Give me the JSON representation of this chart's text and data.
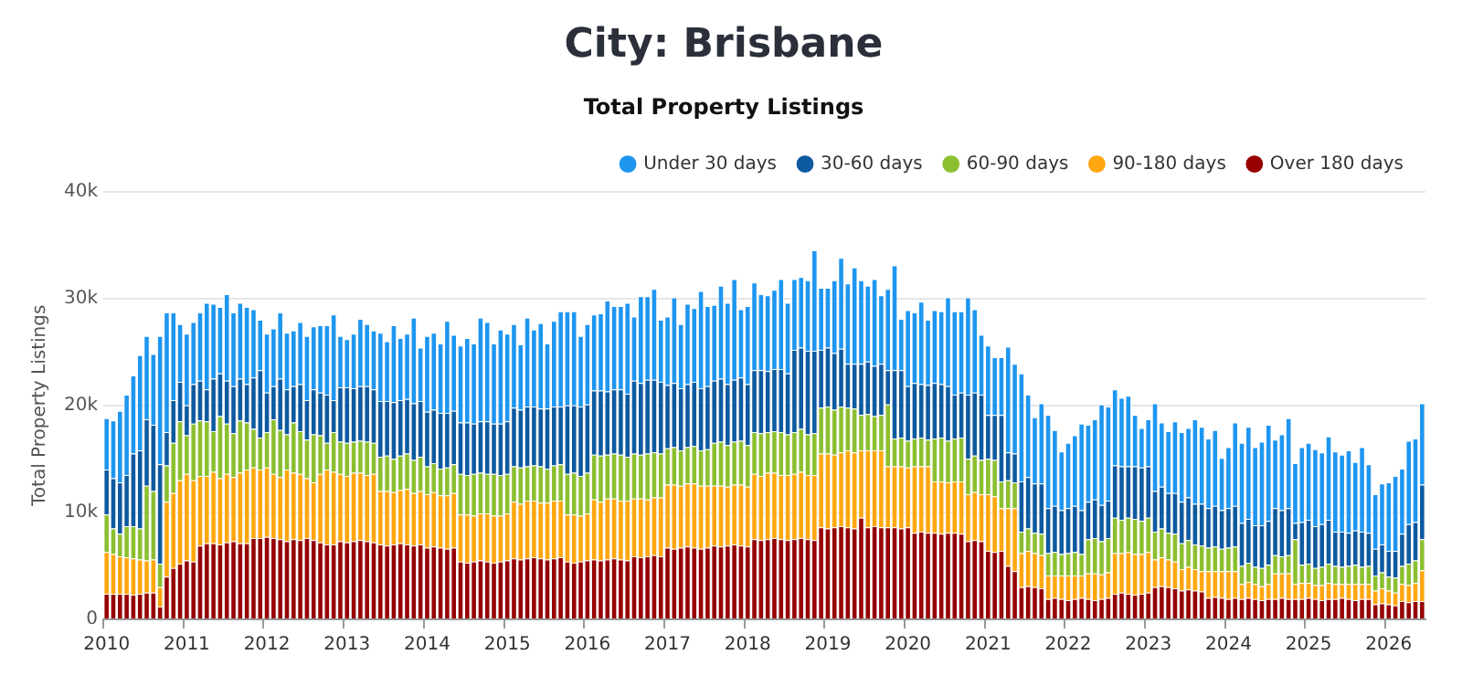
{
  "chart_data": {
    "type": "bar",
    "title": "City: Brisbane",
    "subtitle": "Total Property Listings",
    "ylabel": "Total Property Listings",
    "stacked": true,
    "ylim": [
      0,
      40000
    ],
    "yticks": [
      {
        "value": 0,
        "label": "0"
      },
      {
        "value": 10000,
        "label": "10k"
      },
      {
        "value": 20000,
        "label": "20k"
      },
      {
        "value": 30000,
        "label": "30k"
      },
      {
        "value": 40000,
        "label": "40k"
      }
    ],
    "grid": "y",
    "legend": "top right",
    "categories": [
      "2010",
      null,
      null,
      null,
      null,
      null,
      null,
      null,
      null,
      null,
      null,
      null,
      "2011",
      null,
      null,
      null,
      null,
      null,
      null,
      null,
      null,
      null,
      null,
      null,
      "2012",
      null,
      null,
      null,
      null,
      null,
      null,
      null,
      null,
      null,
      null,
      null,
      "2013",
      null,
      null,
      null,
      null,
      null,
      null,
      null,
      null,
      null,
      null,
      null,
      "2014",
      null,
      null,
      null,
      null,
      null,
      null,
      null,
      null,
      null,
      null,
      null,
      "2015",
      null,
      null,
      null,
      null,
      null,
      null,
      null,
      null,
      null,
      null,
      null,
      "2016",
      null,
      null,
      null,
      null,
      null,
      null,
      null,
      null,
      null,
      null,
      null,
      "2017",
      null,
      null,
      null,
      null,
      null,
      null,
      null,
      null,
      null,
      null,
      null,
      "2018",
      null,
      null,
      null,
      null,
      null,
      null,
      null,
      null,
      null,
      null,
      null,
      "2019",
      null,
      null,
      null,
      null,
      null,
      null,
      null,
      null,
      null,
      null,
      null,
      "2020",
      null,
      null,
      null,
      null,
      null,
      null,
      null,
      null,
      null,
      null,
      null,
      "2021",
      null,
      null,
      null,
      null,
      null,
      null,
      null,
      null,
      null,
      null,
      null,
      "2022",
      null,
      null,
      null,
      null,
      null,
      null,
      null,
      null,
      null,
      null,
      null,
      "2023",
      null,
      null,
      null,
      null,
      null,
      null,
      null,
      null,
      null,
      null,
      null,
      "2024",
      null,
      null,
      null,
      null,
      null,
      null,
      null,
      null,
      null,
      null,
      null,
      "2025",
      null,
      null,
      null,
      null,
      null,
      null,
      null,
      null,
      null,
      null,
      null,
      "2026",
      null,
      null,
      null,
      null,
      null
    ],
    "series": [
      {
        "name": "Over 180 days",
        "color": "#960000",
        "values": [
          2400,
          2400,
          2400,
          2400,
          2300,
          2400,
          2500,
          2500,
          1200,
          4000,
          4800,
          5200,
          5500,
          5400,
          6900,
          7100,
          7100,
          7000,
          7200,
          7300,
          7100,
          7100,
          7600,
          7600,
          7700,
          7600,
          7500,
          7300,
          7500,
          7400,
          7600,
          7400,
          7200,
          7000,
          7000,
          7300,
          7200,
          7300,
          7400,
          7300,
          7200,
          7000,
          6900,
          7000,
          7100,
          7000,
          6900,
          7000,
          6700,
          6800,
          6700,
          6600,
          6700,
          5400,
          5300,
          5400,
          5500,
          5400,
          5300,
          5400,
          5500,
          5700,
          5600,
          5700,
          5800,
          5700,
          5600,
          5700,
          5800,
          5400,
          5300,
          5400,
          5500,
          5600,
          5500,
          5600,
          5700,
          5600,
          5500,
          5900,
          5800,
          5900,
          6000,
          5900,
          6700,
          6600,
          6700,
          6800,
          6700,
          6600,
          6700,
          6900,
          6800,
          6900,
          7000,
          6900,
          6800,
          7500,
          7400,
          7500,
          7600,
          7500,
          7400,
          7500,
          7600,
          7500,
          7400,
          8600,
          8500,
          8600,
          8700,
          8600,
          8500,
          9500,
          8600,
          8700,
          8600,
          8600,
          8600,
          8500,
          8600,
          8100,
          8200,
          8100,
          8100,
          8000,
          8100,
          8100,
          8000,
          7300,
          7400,
          7300,
          6400,
          6300,
          6400,
          5000,
          4500,
          3000,
          3100,
          3000,
          2900,
          1900,
          2000,
          1900,
          1800,
          1900,
          2000,
          1900,
          1800,
          1900,
          2000,
          2400,
          2500,
          2400,
          2300,
          2400,
          2500,
          3000,
          3100,
          3000,
          2900,
          2700,
          2800,
          2700,
          2600,
          2000,
          2100,
          2000,
          1900,
          2000,
          1900,
          2000,
          1900,
          1800,
          1900,
          1900,
          2000,
          1900,
          1900,
          1900,
          2000,
          1900,
          1800,
          1900,
          1900,
          2000,
          1900,
          1800,
          1900,
          1900,
          1400,
          1500,
          1400,
          1300,
          1700,
          1600,
          1700,
          1700
        ]
      },
      {
        "name": "90-180 days",
        "color": "#ffa70f",
        "values": [
          3900,
          3700,
          3500,
          3400,
          3400,
          3200,
          3000,
          3100,
          1800,
          7000,
          7000,
          7800,
          8100,
          7600,
          6500,
          6300,
          6700,
          6200,
          6400,
          6000,
          6600,
          6900,
          6600,
          6400,
          6500,
          6000,
          5800,
          6700,
          6200,
          6200,
          5600,
          5400,
          6400,
          7000,
          6800,
          6300,
          6200,
          6400,
          6300,
          6200,
          6400,
          5000,
          5100,
          4900,
          5000,
          5200,
          4900,
          5000,
          5000,
          5100,
          4900,
          5000,
          5100,
          4400,
          4500,
          4300,
          4400,
          4500,
          4400,
          4300,
          4400,
          5300,
          5200,
          5400,
          5300,
          5200,
          5300,
          5400,
          5300,
          4400,
          4500,
          4300,
          4400,
          5600,
          5500,
          5700,
          5600,
          5500,
          5600,
          5400,
          5500,
          5300,
          5400,
          5500,
          5900,
          6000,
          5800,
          5900,
          6000,
          5900,
          5800,
          5600,
          5700,
          5500,
          5600,
          5700,
          5600,
          6100,
          6000,
          6200,
          6100,
          6000,
          6100,
          6100,
          6200,
          6000,
          6100,
          6900,
          7000,
          6800,
          6900,
          7200,
          7100,
          6300,
          7200,
          7100,
          7200,
          5700,
          5700,
          5800,
          5600,
          6200,
          6100,
          6200,
          4800,
          4900,
          4700,
          4800,
          4900,
          4400,
          4500,
          4400,
          5300,
          5200,
          4000,
          5400,
          5900,
          3200,
          3300,
          3200,
          3100,
          2200,
          2100,
          2200,
          2300,
          2200,
          2100,
          2400,
          2500,
          2300,
          2400,
          3800,
          3700,
          3900,
          3800,
          3700,
          3800,
          2600,
          2700,
          2600,
          2500,
          2000,
          2100,
          2000,
          1900,
          2500,
          2400,
          2500,
          2600,
          2500,
          1400,
          1500,
          1400,
          1300,
          1400,
          2400,
          2300,
          2400,
          1400,
          1500,
          1400,
          1300,
          1400,
          1500,
          1400,
          1300,
          1400,
          1500,
          1400,
          1400,
          1300,
          1400,
          1300,
          1200,
          1600,
          1600,
          1700,
          2900
        ]
      },
      {
        "name": "60-90 days",
        "color": "#8cbf30",
        "values": [
          3500,
          2400,
          2100,
          2900,
          3000,
          2900,
          7000,
          6400,
          2200,
          3400,
          4700,
          5500,
          3600,
          5300,
          5200,
          5100,
          3800,
          5800,
          4700,
          4100,
          4900,
          4400,
          3600,
          3000,
          3300,
          5100,
          4400,
          3300,
          4700,
          4000,
          3600,
          4500,
          3600,
          2500,
          3700,
          3000,
          3100,
          2900,
          3000,
          3100,
          2900,
          3200,
          3300,
          3100,
          3200,
          3300,
          3100,
          3200,
          2600,
          2700,
          2500,
          2600,
          2700,
          3800,
          3700,
          3900,
          3800,
          3700,
          3900,
          3800,
          3700,
          3300,
          3400,
          3200,
          3300,
          3400,
          3200,
          3300,
          3400,
          3800,
          3900,
          3700,
          3800,
          4200,
          4300,
          4100,
          4200,
          4300,
          4100,
          4200,
          4100,
          4300,
          4200,
          4100,
          3400,
          3500,
          3300,
          3400,
          3500,
          3300,
          3400,
          4000,
          4100,
          3900,
          4000,
          4100,
          3900,
          3900,
          4000,
          3800,
          3900,
          4000,
          3800,
          3900,
          4000,
          3800,
          3900,
          4300,
          4400,
          4200,
          4300,
          4000,
          4100,
          3300,
          3400,
          3200,
          3300,
          5800,
          2600,
          2700,
          2500,
          2600,
          2700,
          2500,
          4000,
          4100,
          3900,
          4000,
          4100,
          3300,
          3400,
          3200,
          3300,
          3400,
          2500,
          2600,
          2400,
          2000,
          2100,
          1900,
          2000,
          2100,
          2200,
          2000,
          2100,
          2200,
          2000,
          3200,
          3300,
          3100,
          3200,
          3300,
          3100,
          3200,
          3300,
          3100,
          3200,
          2600,
          2700,
          2500,
          2600,
          2400,
          2500,
          2300,
          2400,
          2200,
          2300,
          2100,
          2200,
          2300,
          1700,
          1800,
          1600,
          1700,
          1800,
          1700,
          1600,
          1700,
          4200,
          1700,
          1800,
          1600,
          1700,
          1800,
          1700,
          1600,
          1700,
          1800,
          1600,
          1700,
          1400,
          1500,
          1300,
          1400,
          1700,
          2000,
          2100,
          2900
        ]
      },
      {
        "name": "30-60 days",
        "color": "#0d5aa0",
        "values": [
          4200,
          4700,
          4800,
          4800,
          6800,
          7300,
          6200,
          6200,
          9300,
          3100,
          4000,
          3700,
          2800,
          3700,
          3700,
          3000,
          4900,
          4000,
          4000,
          4400,
          3900,
          3600,
          4800,
          6300,
          3700,
          3100,
          4800,
          4200,
          3400,
          4400,
          3700,
          4200,
          4000,
          4500,
          3000,
          5100,
          5200,
          5000,
          5100,
          5200,
          5000,
          5200,
          5100,
          5300,
          5200,
          5100,
          5300,
          5200,
          5100,
          5000,
          5200,
          5100,
          5000,
          4800,
          4900,
          4700,
          4800,
          4900,
          4700,
          4800,
          4900,
          5500,
          5400,
          5600,
          5500,
          5400,
          5600,
          5500,
          5400,
          6400,
          6300,
          6500,
          6400,
          6000,
          6100,
          5900,
          6000,
          6100,
          5900,
          6800,
          6700,
          6900,
          6800,
          6700,
          5900,
          6000,
          5800,
          5900,
          6000,
          5800,
          5900,
          5800,
          5900,
          5700,
          5800,
          5900,
          5700,
          5800,
          5900,
          5700,
          5800,
          5900,
          5700,
          7700,
          7600,
          7800,
          7700,
          5400,
          5500,
          5300,
          5400,
          4100,
          4200,
          4800,
          4900,
          4700,
          4800,
          3200,
          6400,
          6300,
          5100,
          5200,
          5000,
          5100,
          5200,
          5000,
          5100,
          4100,
          4200,
          6000,
          5900,
          6100,
          4100,
          4200,
          6200,
          2600,
          2700,
          4700,
          4800,
          4600,
          4700,
          4200,
          4300,
          4100,
          4200,
          4300,
          4100,
          3500,
          3600,
          3400,
          3500,
          4900,
          5000,
          4800,
          4900,
          5000,
          4800,
          3800,
          3900,
          3700,
          3800,
          3900,
          4000,
          3800,
          3900,
          3700,
          3800,
          3600,
          3700,
          3800,
          4000,
          4100,
          3900,
          4000,
          4100,
          4400,
          4300,
          4400,
          1500,
          4000,
          4100,
          3900,
          4000,
          4100,
          3200,
          3300,
          3100,
          3200,
          3300,
          3100,
          2500,
          2600,
          2400,
          2500,
          3000,
          3700,
          3600,
          5100
        ]
      },
      {
        "name": "Under 30 days",
        "color": "#1e96f0",
        "values": [
          4800,
          5400,
          6700,
          7500,
          7300,
          8900,
          7800,
          6600,
          12000,
          11200,
          8200,
          5400,
          6700,
          5800,
          6400,
          8100,
          7000,
          6200,
          8100,
          6900,
          7100,
          7200,
          6400,
          4700,
          5500,
          5400,
          6200,
          5300,
          5200,
          5800,
          6000,
          5900,
          6300,
          6500,
          8000,
          4800,
          4500,
          5100,
          6300,
          5800,
          5500,
          6400,
          5600,
          7200,
          5800,
          6100,
          8000,
          5000,
          7100,
          7200,
          6500,
          8600,
          7100,
          7200,
          7900,
          7500,
          9700,
          9300,
          7500,
          8800,
          8200,
          7800,
          6100,
          8300,
          7200,
          8000,
          6100,
          8000,
          8900,
          8800,
          8800,
          6600,
          7500,
          7100,
          7200,
          8500,
          7800,
          7800,
          8500,
          6000,
          8100,
          7800,
          8500,
          5800,
          6400,
          8000,
          6000,
          7500,
          6900,
          9100,
          7500,
          7100,
          8700,
          7600,
          9400,
          6400,
          7300,
          8200,
          7100,
          7100,
          7400,
          8400,
          6600,
          6600,
          6600,
          6600,
          9400,
          5800,
          5600,
          6800,
          8500,
          7500,
          9000,
          7800,
          7100,
          8100,
          6400,
          7600,
          9800,
          4800,
          7100,
          6600,
          7700,
          6100,
          6800,
          6800,
          8300,
          7800,
          7600,
          9100,
          7800,
          5600,
          6500,
          5400,
          5400,
          9900,
          8400,
          10100,
          7700,
          6200,
          7500,
          8700,
          7100,
          5500,
          6100,
          6600,
          8100,
          7200,
          7500,
          9400,
          8800,
          7100,
          6400,
          6600,
          4800,
          3700,
          4400,
          8200,
          6000,
          5800,
          6700,
          6500,
          6500,
          7900,
          7200,
          6500,
          7100,
          4900,
          5700,
          7800,
          7500,
          8600,
          7300,
          7800,
          9000,
          6400,
          7100,
          8400,
          5600,
          7000,
          7200,
          7200,
          6700,
          7800,
          7500,
          7200,
          7700,
          6400,
          7900,
          6400,
          5100,
          5700,
          6400,
          7000,
          6100,
          7800,
          7800,
          7600
        ]
      }
    ]
  }
}
